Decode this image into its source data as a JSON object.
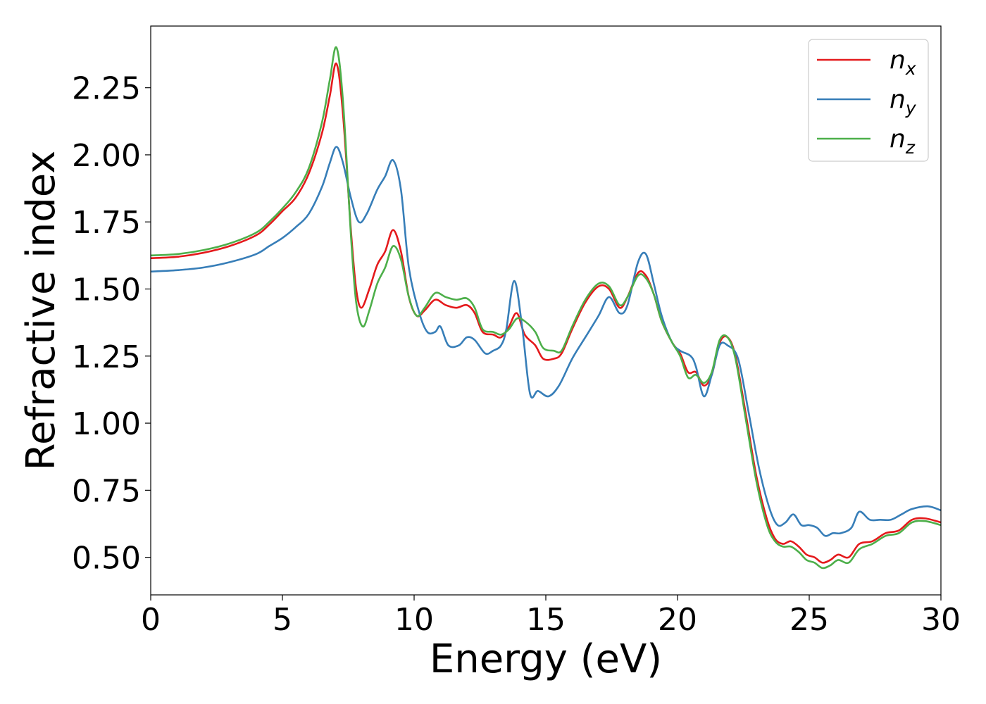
{
  "chart_data": {
    "type": "line",
    "xlabel": "Energy (eV)",
    "ylabel": "Refractive index",
    "xlim": [
      0,
      30
    ],
    "ylim": [
      0.36,
      2.48
    ],
    "xticks": [
      0,
      5,
      10,
      15,
      20,
      25,
      30
    ],
    "xtick_labels": [
      "0",
      "5",
      "10",
      "15",
      "20",
      "25",
      "30"
    ],
    "yticks": [
      0.5,
      0.75,
      1.0,
      1.25,
      1.5,
      1.75,
      2.0,
      2.25
    ],
    "ytick_labels": [
      "0.50",
      "0.75",
      "1.00",
      "1.25",
      "1.50",
      "1.75",
      "2.00",
      "2.25"
    ],
    "grid": false,
    "legend_position": "top-right",
    "series": [
      {
        "name": "n_x",
        "label_base": "n",
        "label_sub": "x",
        "color": "#e41a1c",
        "points": [
          [
            0,
            1.615
          ],
          [
            1,
            1.62
          ],
          [
            2,
            1.635
          ],
          [
            3,
            1.66
          ],
          [
            4,
            1.7
          ],
          [
            4.5,
            1.74
          ],
          [
            5,
            1.79
          ],
          [
            5.5,
            1.84
          ],
          [
            6,
            1.93
          ],
          [
            6.5,
            2.08
          ],
          [
            6.8,
            2.22
          ],
          [
            7.05,
            2.34
          ],
          [
            7.3,
            2.15
          ],
          [
            7.6,
            1.72
          ],
          [
            7.8,
            1.5
          ],
          [
            8.0,
            1.43
          ],
          [
            8.3,
            1.5
          ],
          [
            8.6,
            1.59
          ],
          [
            8.9,
            1.64
          ],
          [
            9.2,
            1.72
          ],
          [
            9.5,
            1.64
          ],
          [
            9.8,
            1.47
          ],
          [
            10.1,
            1.4
          ],
          [
            10.4,
            1.42
          ],
          [
            10.8,
            1.46
          ],
          [
            11.2,
            1.44
          ],
          [
            11.6,
            1.43
          ],
          [
            12.0,
            1.44
          ],
          [
            12.3,
            1.41
          ],
          [
            12.6,
            1.34
          ],
          [
            13.0,
            1.33
          ],
          [
            13.3,
            1.32
          ],
          [
            13.6,
            1.36
          ],
          [
            13.9,
            1.41
          ],
          [
            14.2,
            1.33
          ],
          [
            14.6,
            1.29
          ],
          [
            14.9,
            1.24
          ],
          [
            15.3,
            1.24
          ],
          [
            15.6,
            1.26
          ],
          [
            16.0,
            1.35
          ],
          [
            16.5,
            1.45
          ],
          [
            17.0,
            1.51
          ],
          [
            17.4,
            1.5
          ],
          [
            17.8,
            1.43
          ],
          [
            18.1,
            1.47
          ],
          [
            18.5,
            1.56
          ],
          [
            18.8,
            1.55
          ],
          [
            19.1,
            1.48
          ],
          [
            19.4,
            1.38
          ],
          [
            19.8,
            1.3
          ],
          [
            20.1,
            1.26
          ],
          [
            20.4,
            1.19
          ],
          [
            20.7,
            1.19
          ],
          [
            21.0,
            1.14
          ],
          [
            21.3,
            1.18
          ],
          [
            21.6,
            1.3
          ],
          [
            21.9,
            1.32
          ],
          [
            22.2,
            1.25
          ],
          [
            22.6,
            1.03
          ],
          [
            23.0,
            0.8
          ],
          [
            23.4,
            0.64
          ],
          [
            23.7,
            0.57
          ],
          [
            24.0,
            0.55
          ],
          [
            24.3,
            0.56
          ],
          [
            24.6,
            0.54
          ],
          [
            24.9,
            0.51
          ],
          [
            25.2,
            0.5
          ],
          [
            25.5,
            0.48
          ],
          [
            25.8,
            0.49
          ],
          [
            26.1,
            0.51
          ],
          [
            26.5,
            0.5
          ],
          [
            26.9,
            0.55
          ],
          [
            27.4,
            0.56
          ],
          [
            27.9,
            0.59
          ],
          [
            28.4,
            0.6
          ],
          [
            28.9,
            0.64
          ],
          [
            29.4,
            0.645
          ],
          [
            30.0,
            0.63
          ]
        ]
      },
      {
        "name": "n_y",
        "label_base": "n",
        "label_sub": "y",
        "color": "#377eb8",
        "points": [
          [
            0,
            1.565
          ],
          [
            1,
            1.57
          ],
          [
            2,
            1.58
          ],
          [
            3,
            1.6
          ],
          [
            4,
            1.63
          ],
          [
            4.5,
            1.66
          ],
          [
            5,
            1.69
          ],
          [
            5.5,
            1.73
          ],
          [
            6,
            1.78
          ],
          [
            6.5,
            1.88
          ],
          [
            6.8,
            1.97
          ],
          [
            7.05,
            2.03
          ],
          [
            7.3,
            1.97
          ],
          [
            7.6,
            1.84
          ],
          [
            7.9,
            1.75
          ],
          [
            8.2,
            1.78
          ],
          [
            8.6,
            1.87
          ],
          [
            8.9,
            1.92
          ],
          [
            9.2,
            1.98
          ],
          [
            9.5,
            1.87
          ],
          [
            9.8,
            1.58
          ],
          [
            10.2,
            1.41
          ],
          [
            10.5,
            1.34
          ],
          [
            10.8,
            1.34
          ],
          [
            11.0,
            1.36
          ],
          [
            11.3,
            1.29
          ],
          [
            11.7,
            1.29
          ],
          [
            12.0,
            1.32
          ],
          [
            12.3,
            1.31
          ],
          [
            12.7,
            1.26
          ],
          [
            13.0,
            1.27
          ],
          [
            13.3,
            1.29
          ],
          [
            13.5,
            1.35
          ],
          [
            13.8,
            1.53
          ],
          [
            14.1,
            1.36
          ],
          [
            14.4,
            1.11
          ],
          [
            14.7,
            1.12
          ],
          [
            15.1,
            1.1
          ],
          [
            15.5,
            1.14
          ],
          [
            16.0,
            1.24
          ],
          [
            16.5,
            1.32
          ],
          [
            17.0,
            1.4
          ],
          [
            17.4,
            1.47
          ],
          [
            17.8,
            1.41
          ],
          [
            18.1,
            1.44
          ],
          [
            18.5,
            1.6
          ],
          [
            18.8,
            1.63
          ],
          [
            19.1,
            1.52
          ],
          [
            19.4,
            1.4
          ],
          [
            19.8,
            1.3
          ],
          [
            20.1,
            1.27
          ],
          [
            20.5,
            1.25
          ],
          [
            20.7,
            1.21
          ],
          [
            21.0,
            1.1
          ],
          [
            21.3,
            1.18
          ],
          [
            21.6,
            1.29
          ],
          [
            21.9,
            1.29
          ],
          [
            22.3,
            1.24
          ],
          [
            22.7,
            1.04
          ],
          [
            23.1,
            0.83
          ],
          [
            23.5,
            0.68
          ],
          [
            23.8,
            0.62
          ],
          [
            24.1,
            0.63
          ],
          [
            24.4,
            0.66
          ],
          [
            24.7,
            0.62
          ],
          [
            25.0,
            0.62
          ],
          [
            25.3,
            0.61
          ],
          [
            25.6,
            0.58
          ],
          [
            25.9,
            0.59
          ],
          [
            26.2,
            0.59
          ],
          [
            26.6,
            0.61
          ],
          [
            26.9,
            0.67
          ],
          [
            27.3,
            0.64
          ],
          [
            27.7,
            0.64
          ],
          [
            28.1,
            0.64
          ],
          [
            28.5,
            0.66
          ],
          [
            28.9,
            0.68
          ],
          [
            29.5,
            0.69
          ],
          [
            30.0,
            0.675
          ]
        ]
      },
      {
        "name": "n_z",
        "label_base": "n",
        "label_sub": "z",
        "color": "#4daf4a",
        "points": [
          [
            0,
            1.625
          ],
          [
            1,
            1.63
          ],
          [
            2,
            1.645
          ],
          [
            3,
            1.67
          ],
          [
            4,
            1.71
          ],
          [
            4.5,
            1.75
          ],
          [
            5,
            1.8
          ],
          [
            5.5,
            1.86
          ],
          [
            6,
            1.95
          ],
          [
            6.5,
            2.12
          ],
          [
            6.8,
            2.28
          ],
          [
            7.05,
            2.4
          ],
          [
            7.3,
            2.2
          ],
          [
            7.6,
            1.7
          ],
          [
            7.8,
            1.45
          ],
          [
            8.05,
            1.36
          ],
          [
            8.3,
            1.42
          ],
          [
            8.6,
            1.52
          ],
          [
            8.9,
            1.58
          ],
          [
            9.2,
            1.66
          ],
          [
            9.5,
            1.61
          ],
          [
            9.8,
            1.47
          ],
          [
            10.1,
            1.4
          ],
          [
            10.4,
            1.43
          ],
          [
            10.8,
            1.485
          ],
          [
            11.2,
            1.47
          ],
          [
            11.6,
            1.46
          ],
          [
            12.0,
            1.465
          ],
          [
            12.3,
            1.43
          ],
          [
            12.6,
            1.35
          ],
          [
            13.0,
            1.34
          ],
          [
            13.3,
            1.33
          ],
          [
            13.6,
            1.35
          ],
          [
            13.9,
            1.39
          ],
          [
            14.2,
            1.38
          ],
          [
            14.6,
            1.34
          ],
          [
            14.9,
            1.28
          ],
          [
            15.3,
            1.27
          ],
          [
            15.6,
            1.27
          ],
          [
            16.0,
            1.36
          ],
          [
            16.5,
            1.46
          ],
          [
            17.0,
            1.52
          ],
          [
            17.4,
            1.51
          ],
          [
            17.8,
            1.44
          ],
          [
            18.1,
            1.47
          ],
          [
            18.5,
            1.55
          ],
          [
            18.8,
            1.54
          ],
          [
            19.1,
            1.48
          ],
          [
            19.4,
            1.38
          ],
          [
            19.8,
            1.3
          ],
          [
            20.1,
            1.25
          ],
          [
            20.4,
            1.17
          ],
          [
            20.7,
            1.18
          ],
          [
            21.0,
            1.15
          ],
          [
            21.3,
            1.19
          ],
          [
            21.6,
            1.31
          ],
          [
            21.9,
            1.32
          ],
          [
            22.2,
            1.24
          ],
          [
            22.6,
            1.01
          ],
          [
            23.0,
            0.78
          ],
          [
            23.4,
            0.62
          ],
          [
            23.7,
            0.56
          ],
          [
            24.0,
            0.54
          ],
          [
            24.3,
            0.54
          ],
          [
            24.6,
            0.52
          ],
          [
            24.9,
            0.49
          ],
          [
            25.2,
            0.48
          ],
          [
            25.5,
            0.46
          ],
          [
            25.8,
            0.47
          ],
          [
            26.1,
            0.49
          ],
          [
            26.5,
            0.48
          ],
          [
            26.9,
            0.53
          ],
          [
            27.4,
            0.55
          ],
          [
            27.9,
            0.58
          ],
          [
            28.4,
            0.59
          ],
          [
            28.9,
            0.63
          ],
          [
            29.4,
            0.635
          ],
          [
            30.0,
            0.62
          ]
        ]
      }
    ]
  }
}
